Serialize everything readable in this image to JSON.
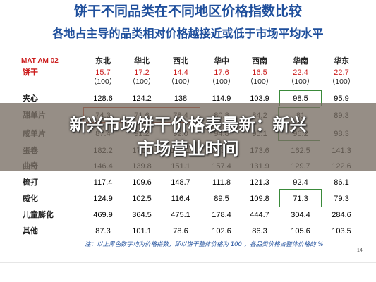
{
  "title": "饼干不同品类在不同地区价格指数比较",
  "subtitle": "各地占主导的品类相对价格越接近或低于市场平均水平",
  "table": {
    "corner_label": "MAT AM 02",
    "regions": [
      "东北",
      "华北",
      "西北",
      "华中",
      "西南",
      "华南",
      "华东"
    ],
    "biscuit_row": {
      "label": "饼干",
      "values": [
        "15.7",
        "17.2",
        "14.4",
        "17.6",
        "16.5",
        "22.4",
        "22.7"
      ],
      "base": [
        "（100）",
        "（100）",
        "（100）",
        "（100）",
        "（100）",
        "（100）",
        "（100）"
      ]
    },
    "rows": [
      {
        "label": "夹心",
        "values": [
          "128.6",
          "124.2",
          "138",
          "114.9",
          "103.9",
          "98.5",
          "95.9"
        ]
      },
      {
        "label": "甜单片",
        "values": [
          "74.3",
          "71.6",
          "78.4",
          "80.8",
          "84.2",
          "81",
          "89.3"
        ]
      },
      {
        "label": "咸单片",
        "values": [
          "87.4",
          "91.2",
          "92.0",
          "94.8",
          "95.1",
          "96.2",
          "98.3"
        ]
      },
      {
        "label": "蛋卷",
        "values": [
          "182.2",
          "171.3",
          "160.1",
          "183.6",
          "173.6",
          "162.5",
          "141.3"
        ]
      },
      {
        "label": "曲奇",
        "values": [
          "146.4",
          "139.8",
          "151.1",
          "157.4",
          "131.9",
          "129.7",
          "122.6"
        ]
      },
      {
        "label": "梳打",
        "values": [
          "117.4",
          "109.6",
          "148.7",
          "111.8",
          "121.3",
          "92.4",
          "86.1"
        ]
      },
      {
        "label": "威化",
        "values": [
          "124.9",
          "102.5",
          "116.4",
          "89.5",
          "109.8",
          "71.3",
          "79.3"
        ]
      },
      {
        "label": "儿童膨化",
        "values": [
          "469.9",
          "364.5",
          "475.1",
          "178.4",
          "444.7",
          "304.4",
          "284.6"
        ]
      },
      {
        "label": "其他",
        "values": [
          "87.3",
          "101.1",
          "78.6",
          "102.6",
          "86.3",
          "105.6",
          "103.5"
        ]
      }
    ]
  },
  "note": "注：以上黑色数字均为价格指数，即以饼干整体价格为 100 ，各品类价格占整体价格的 %",
  "page_number": "14",
  "banner": {
    "line1": "新兴市场饼干价格表最新：新兴",
    "line2": "市场营业时间"
  },
  "colors": {
    "title_blue": "#1f4f9c",
    "accent_red": "#cc1d1d",
    "highlight_green": "#3a8a3a",
    "banner_overlay": "#786e64"
  }
}
